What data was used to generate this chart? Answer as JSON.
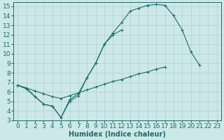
{
  "xlabel": "Humidex (Indice chaleur)",
  "bg_color": "#cce8e8",
  "line_color": "#1f6b6b",
  "grid_color": "#b0d0d0",
  "xlim": [
    -0.5,
    23.5
  ],
  "ylim": [
    3,
    15.4
  ],
  "xticks": [
    0,
    1,
    2,
    3,
    4,
    5,
    6,
    7,
    8,
    9,
    10,
    11,
    12,
    13,
    14,
    15,
    16,
    17,
    18,
    19,
    20,
    21,
    22,
    23
  ],
  "yticks": [
    3,
    4,
    5,
    6,
    7,
    8,
    9,
    10,
    11,
    12,
    13,
    14,
    15
  ],
  "line1_y": [
    6.7,
    6.4,
    6.1,
    5.8,
    5.5,
    5.3,
    5.6,
    5.9,
    6.2,
    6.5,
    6.8,
    7.1,
    7.3,
    7.6,
    7.9,
    8.1,
    8.4,
    8.6,
    null,
    null,
    null,
    null,
    null,
    null
  ],
  "line2_y": [
    6.7,
    6.4,
    5.5,
    4.7,
    4.5,
    3.3,
    5.2,
    5.8,
    7.5,
    9.0,
    11.0,
    12.2,
    13.3,
    14.5,
    14.8,
    15.1,
    15.2,
    15.1,
    14.0,
    12.5,
    10.2,
    8.8,
    null,
    null
  ],
  "line3_y": [
    6.7,
    6.3,
    5.5,
    4.7,
    4.5,
    3.3,
    5.0,
    5.6,
    7.5,
    9.0,
    11.0,
    12.0,
    12.5,
    null,
    null,
    null,
    null,
    null,
    null,
    null,
    null,
    null,
    null,
    null
  ],
  "font_size": 6.5
}
